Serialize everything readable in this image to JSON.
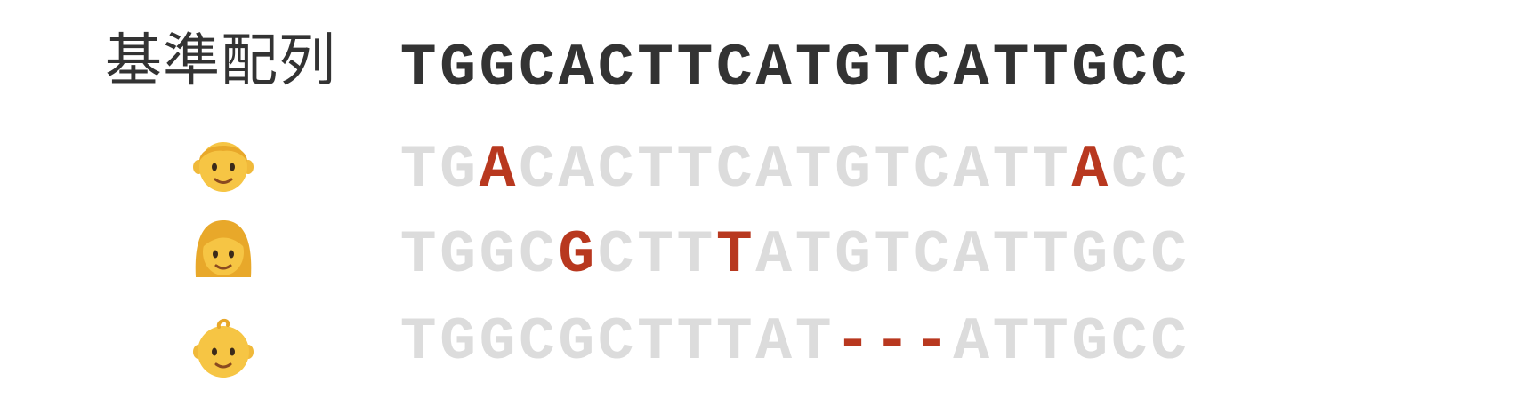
{
  "reference_label": "基準配列",
  "reference_sequence": "TGGCACTTCATGTCATTGCC",
  "rows": [
    {
      "icon": "boy-emoji-icon",
      "sequence": "TGACACTTCATGTCATTACC",
      "highlight": [
        false,
        false,
        true,
        false,
        false,
        false,
        false,
        false,
        false,
        false,
        false,
        false,
        false,
        false,
        false,
        false,
        false,
        true,
        false,
        false
      ]
    },
    {
      "icon": "woman-emoji-icon",
      "sequence": "TGGCGCTTTATGTCATTGCC",
      "highlight": [
        false,
        false,
        false,
        false,
        true,
        false,
        false,
        false,
        true,
        false,
        false,
        false,
        false,
        false,
        false,
        false,
        false,
        false,
        false,
        false
      ]
    },
    {
      "icon": "baby-emoji-icon",
      "sequence": "TGGCGCTTTAT---ATTGCC",
      "highlight": [
        false,
        false,
        false,
        false,
        false,
        false,
        false,
        false,
        false,
        false,
        false,
        true,
        true,
        true,
        false,
        false,
        false,
        false,
        false,
        false
      ]
    }
  ],
  "colors": {
    "reference_text": "#333333",
    "unchanged_base": "#dcdcdc",
    "mutation": "#b8381f",
    "emoji_skin": "#f6c544",
    "emoji_hair": "#e8a82a"
  }
}
